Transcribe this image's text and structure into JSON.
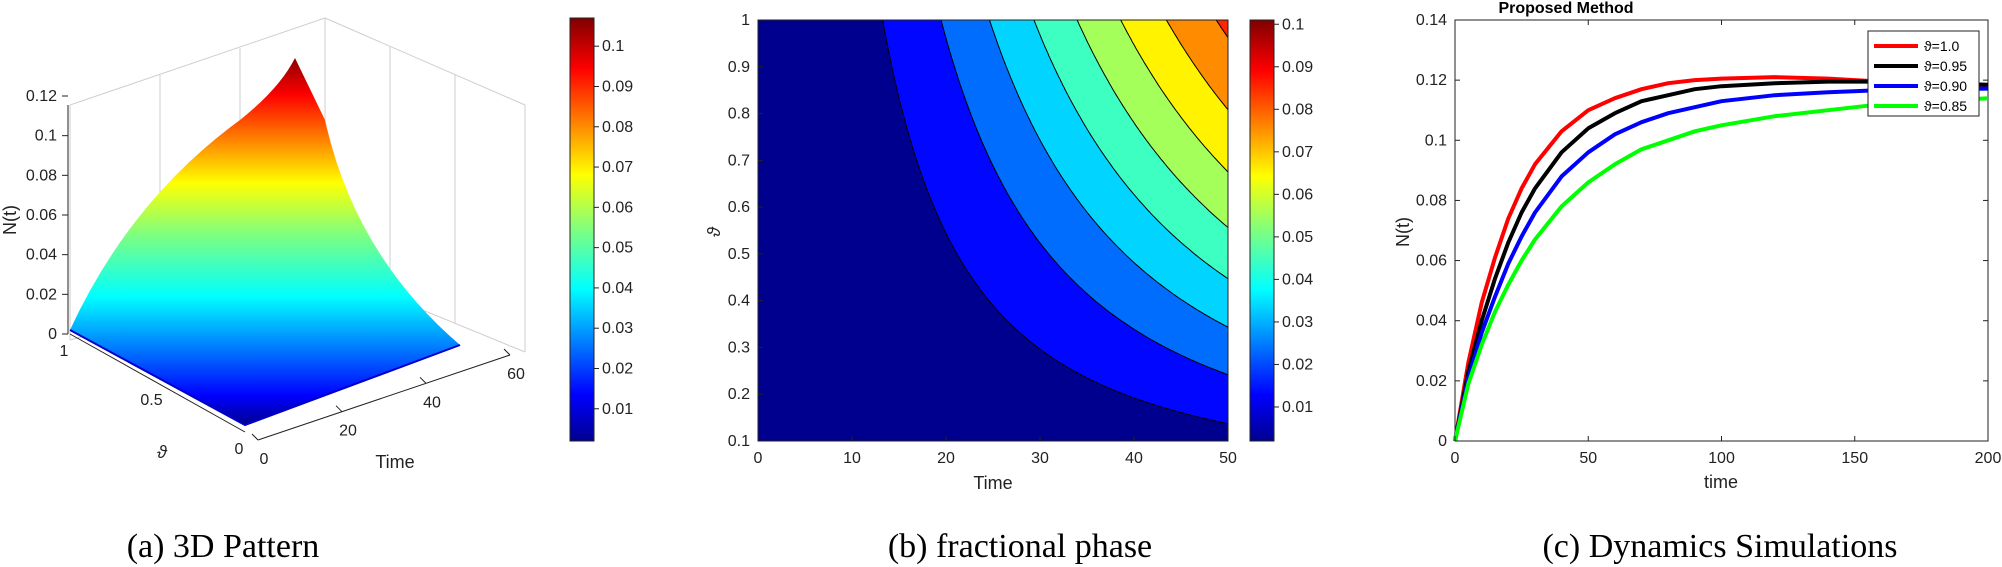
{
  "chart_data": [
    {
      "type": "surface",
      "caption": "(a) 3D Pattern",
      "zlabel": "N(t)",
      "xlabel": "Time",
      "ylabel": "ϑ",
      "x_ticks": [
        "0",
        "20",
        "40",
        "60"
      ],
      "y_ticks": [
        "0",
        "0.5",
        "1"
      ],
      "z_ticks": [
        "0",
        "0.02",
        "0.04",
        "0.06",
        "0.08",
        "0.1",
        "0.12"
      ],
      "xlim": [
        0,
        60
      ],
      "ylim": [
        0,
        1
      ],
      "zlim": [
        0,
        0.12
      ],
      "colorbar_ticks": [
        "0.01",
        "0.02",
        "0.03",
        "0.04",
        "0.05",
        "0.06",
        "0.07",
        "0.08",
        "0.09",
        "0.1"
      ],
      "colorbar_range": [
        0.002,
        0.107
      ],
      "colormap": "jet"
    },
    {
      "type": "contour",
      "caption": "(b) fractional phase",
      "xlabel": "Time",
      "ylabel": "ϑ",
      "x_ticks": [
        "0",
        "10",
        "20",
        "30",
        "40",
        "50"
      ],
      "y_ticks": [
        "0.1",
        "0.2",
        "0.3",
        "0.4",
        "0.5",
        "0.6",
        "0.7",
        "0.8",
        "0.9",
        "1"
      ],
      "xlim": [
        0,
        50
      ],
      "ylim": [
        0.1,
        1
      ],
      "colorbar_ticks": [
        "0.01",
        "0.02",
        "0.03",
        "0.04",
        "0.05",
        "0.06",
        "0.07",
        "0.08",
        "0.09",
        "0.1"
      ],
      "colorbar_range": [
        0.002,
        0.101
      ],
      "levels": [
        0.01,
        0.02,
        0.03,
        0.04,
        0.05,
        0.06,
        0.07,
        0.08,
        0.09,
        0.1
      ],
      "colormap": "jet"
    },
    {
      "type": "line",
      "caption": "(c) Dynamics Simulations",
      "title": "Proposed Method",
      "xlabel": "time",
      "ylabel": "N(t)",
      "x_ticks": [
        "0",
        "50",
        "100",
        "150",
        "200"
      ],
      "y_ticks": [
        "0",
        "0.02",
        "0.04",
        "0.06",
        "0.08",
        "0.1",
        "0.12",
        "0.14"
      ],
      "xlim": [
        0,
        200
      ],
      "ylim": [
        0,
        0.14
      ],
      "legend_position": "top-right",
      "x": [
        0,
        5,
        10,
        15,
        20,
        25,
        30,
        40,
        50,
        60,
        70,
        80,
        90,
        100,
        120,
        140,
        160,
        180,
        200
      ],
      "series": [
        {
          "name": "ϑ=1.0",
          "color": "#ff0000",
          "values": [
            0,
            0.026,
            0.046,
            0.061,
            0.074,
            0.084,
            0.092,
            0.103,
            0.11,
            0.114,
            0.117,
            0.119,
            0.12,
            0.1205,
            0.121,
            0.1205,
            0.1195,
            0.1185,
            0.1175
          ]
        },
        {
          "name": "ϑ=0.95",
          "color": "#000000",
          "values": [
            0,
            0.023,
            0.04,
            0.054,
            0.066,
            0.076,
            0.084,
            0.096,
            0.104,
            0.109,
            0.113,
            0.115,
            0.117,
            0.118,
            0.119,
            0.1195,
            0.1195,
            0.119,
            0.1185
          ]
        },
        {
          "name": "ϑ=0.90",
          "color": "#0000ff",
          "values": [
            0,
            0.021,
            0.036,
            0.048,
            0.059,
            0.068,
            0.076,
            0.088,
            0.096,
            0.102,
            0.106,
            0.109,
            0.111,
            0.113,
            0.115,
            0.116,
            0.1167,
            0.117,
            0.1172
          ]
        },
        {
          "name": "ϑ=0.85",
          "color": "#00ff00",
          "values": [
            0,
            0.019,
            0.032,
            0.043,
            0.052,
            0.06,
            0.067,
            0.078,
            0.086,
            0.092,
            0.097,
            0.1,
            0.103,
            0.105,
            0.108,
            0.11,
            0.112,
            0.113,
            0.114
          ]
        }
      ]
    }
  ]
}
